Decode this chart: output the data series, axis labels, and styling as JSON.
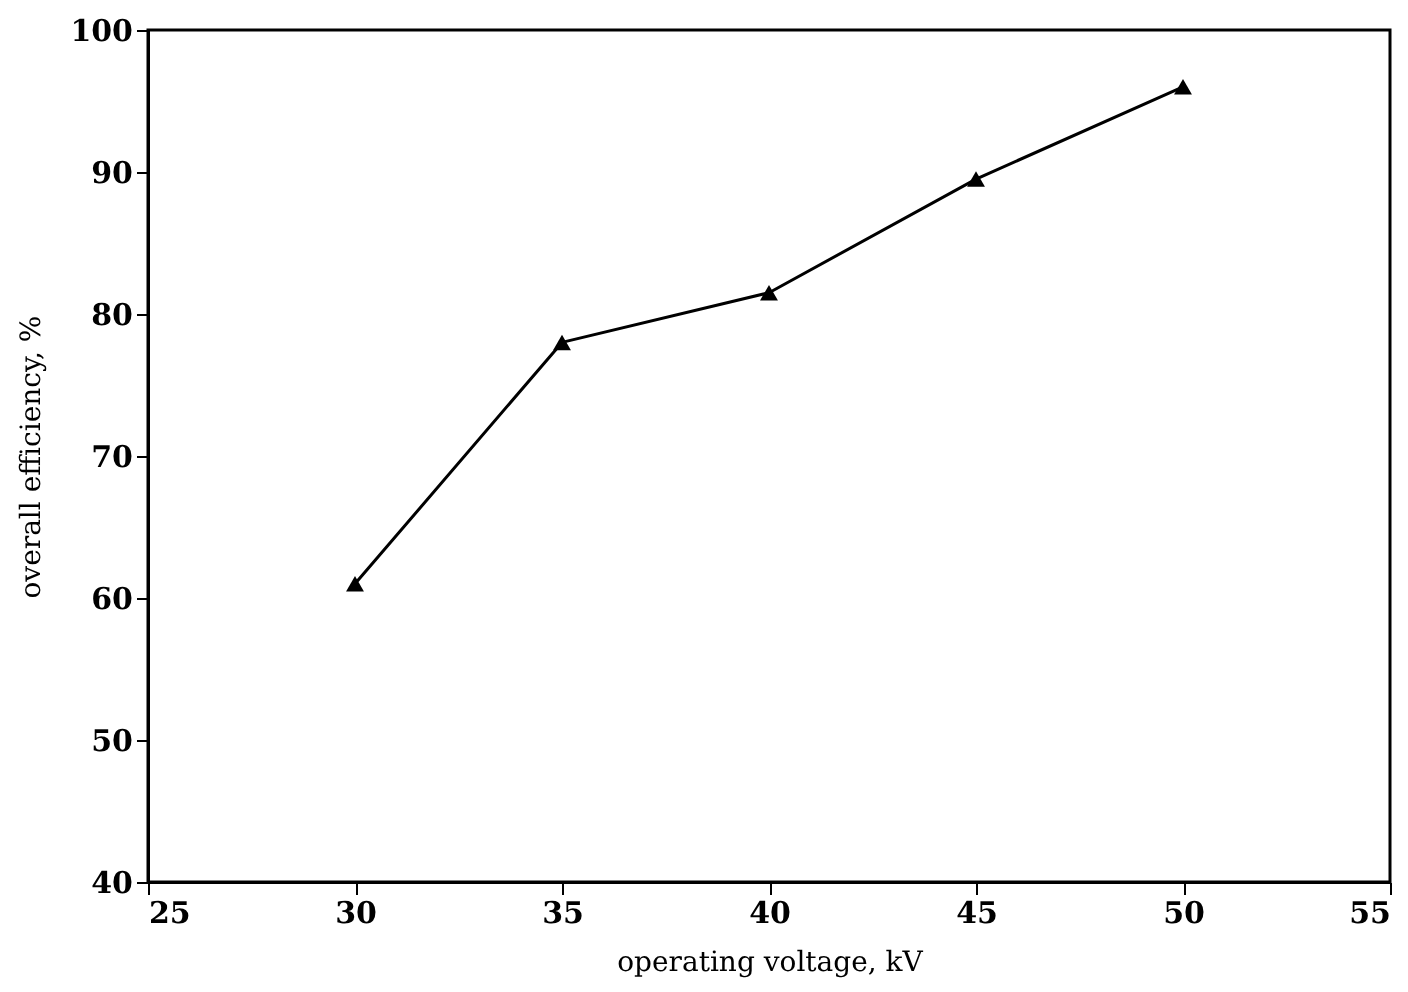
{
  "chart_data": {
    "type": "line",
    "xlabel": "operating voltage, kV",
    "ylabel": "overall efficiency, %",
    "x": [
      30,
      35,
      40,
      45,
      50
    ],
    "series": [
      {
        "color": "#000000",
        "values": [
          61,
          78,
          81.5,
          89.5,
          96
        ]
      }
    ],
    "xlim": [
      25,
      55
    ],
    "xticks": [
      25,
      30,
      35,
      40,
      45,
      50,
      55
    ],
    "ylim": [
      40,
      100
    ],
    "yticks": [
      40,
      50,
      60,
      70,
      80,
      90,
      100
    ],
    "marker": "triangle",
    "line_style": "solid",
    "grid": false
  }
}
